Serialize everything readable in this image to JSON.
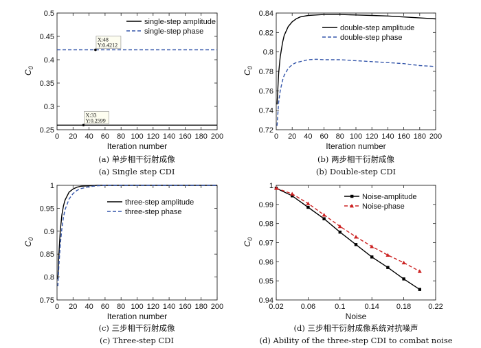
{
  "chart_data": [
    {
      "type": "line",
      "panel": "a",
      "xlabel": "Iteration number",
      "ylabel": "C0",
      "xlim": [
        0,
        200
      ],
      "ylim": [
        0.25,
        0.5
      ],
      "xticks": [
        "0",
        "20",
        "40",
        "60",
        "80",
        "100",
        "120",
        "140",
        "160",
        "180",
        "200"
      ],
      "yticks": [
        "0.25",
        "0.3",
        "0.35",
        "0.4",
        "0.45",
        "0.5"
      ],
      "legend_position": "top-right",
      "series": [
        {
          "name": "single-step amplitude",
          "color": "#000000",
          "style": "solid",
          "x": [
            0,
            200
          ],
          "y": [
            0.2599,
            0.2599
          ]
        },
        {
          "name": "single-step phase",
          "color": "#3355aa",
          "style": "dashed",
          "x": [
            0,
            200
          ],
          "y": [
            0.4212,
            0.4212
          ]
        }
      ],
      "annotations": [
        {
          "x": 48,
          "y": 0.4212,
          "text_x": "X:48",
          "text_y": "Y:0.4212"
        },
        {
          "x": 33,
          "y": 0.2599,
          "text_x": "X:33",
          "text_y": "Y:0.2599"
        }
      ],
      "caption_cn": "(a) 单步相干衍射成像",
      "caption_en": "(a) Single step CDI"
    },
    {
      "type": "line",
      "panel": "b",
      "xlabel": "Iteration number",
      "ylabel": "C0",
      "xlim": [
        0,
        200
      ],
      "ylim": [
        0.72,
        0.84
      ],
      "xticks": [
        "0",
        "20",
        "40",
        "60",
        "80",
        "100",
        "120",
        "140",
        "160",
        "180",
        "200"
      ],
      "yticks": [
        "0.72",
        "0.74",
        "0.76",
        "0.78",
        "0.8",
        "0.82",
        "0.84"
      ],
      "legend_position": "top-right",
      "series": [
        {
          "name": "double-step amplitude",
          "color": "#000000",
          "style": "solid",
          "x": [
            1,
            3,
            5,
            8,
            10,
            15,
            20,
            25,
            30,
            40,
            50,
            60,
            80,
            100,
            120,
            140,
            160,
            180,
            200
          ],
          "y": [
            0.746,
            0.778,
            0.795,
            0.81,
            0.817,
            0.826,
            0.831,
            0.834,
            0.836,
            0.8375,
            0.838,
            0.8385,
            0.8385,
            0.838,
            0.8375,
            0.837,
            0.836,
            0.835,
            0.834
          ]
        },
        {
          "name": "double-step phase",
          "color": "#3355aa",
          "style": "dashed",
          "x": [
            1,
            3,
            5,
            8,
            10,
            15,
            20,
            25,
            30,
            40,
            50,
            60,
            80,
            100,
            120,
            140,
            160,
            180,
            200
          ],
          "y": [
            0.724,
            0.748,
            0.76,
            0.771,
            0.776,
            0.783,
            0.787,
            0.789,
            0.79,
            0.792,
            0.7925,
            0.792,
            0.792,
            0.791,
            0.79,
            0.789,
            0.788,
            0.786,
            0.785
          ]
        }
      ],
      "caption_cn": "(b) 两步相干衍射成像",
      "caption_en": "(b) Double-step CDI"
    },
    {
      "type": "line",
      "panel": "c",
      "xlabel": "Iteration number",
      "ylabel": "C0",
      "xlim": [
        0,
        200
      ],
      "ylim": [
        0.75,
        1.0
      ],
      "xticks": [
        "0",
        "20",
        "40",
        "60",
        "80",
        "100",
        "120",
        "140",
        "160",
        "180",
        "200"
      ],
      "yticks": [
        "0.75",
        "0.8",
        "0.85",
        "0.9",
        "0.95",
        "1"
      ],
      "legend_position": "top-right",
      "series": [
        {
          "name": "three-step amplitude",
          "color": "#000000",
          "style": "solid",
          "x": [
            1,
            2,
            4,
            6,
            8,
            10,
            15,
            20,
            25,
            30,
            40,
            50,
            60,
            100,
            200
          ],
          "y": [
            0.795,
            0.84,
            0.9,
            0.935,
            0.955,
            0.968,
            0.985,
            0.992,
            0.996,
            0.998,
            0.999,
            1.0,
            1.0,
            1.0,
            1.0
          ]
        },
        {
          "name": "three-step phase",
          "color": "#3355aa",
          "style": "dashed",
          "x": [
            1,
            2,
            4,
            6,
            8,
            10,
            15,
            20,
            25,
            30,
            40,
            50,
            60,
            100,
            200
          ],
          "y": [
            0.78,
            0.815,
            0.87,
            0.905,
            0.93,
            0.947,
            0.97,
            0.982,
            0.989,
            0.993,
            0.997,
            0.999,
            1.0,
            1.0,
            1.0
          ]
        }
      ],
      "caption_cn": "(c) 三步相干衍射成像",
      "caption_en": "(c) Three-step CDI"
    },
    {
      "type": "line",
      "panel": "d",
      "xlabel": "Noise",
      "ylabel": "C0",
      "xlim": [
        0.02,
        0.22
      ],
      "ylim": [
        0.94,
        1.0
      ],
      "xticks": [
        "0.02",
        "0.06",
        "0.1",
        "0.14",
        "0.18",
        "0.22"
      ],
      "yticks": [
        "0.94",
        "0.95",
        "0.96",
        "0.97",
        "0.98",
        "0.99",
        "1"
      ],
      "legend_position": "top-right",
      "series": [
        {
          "name": "Noise-amplitude",
          "color": "#000000",
          "style": "solid",
          "marker": "square",
          "x": [
            0.02,
            0.04,
            0.06,
            0.08,
            0.1,
            0.12,
            0.14,
            0.16,
            0.18,
            0.2
          ],
          "y": [
            0.9985,
            0.9945,
            0.9885,
            0.9825,
            0.9755,
            0.969,
            0.9625,
            0.957,
            0.951,
            0.9455
          ]
        },
        {
          "name": "Noise-phase",
          "color": "#cc2222",
          "style": "dashed",
          "marker": "triangle",
          "x": [
            0.02,
            0.04,
            0.06,
            0.08,
            0.1,
            0.12,
            0.14,
            0.16,
            0.18,
            0.2
          ],
          "y": [
            0.9985,
            0.9955,
            0.9905,
            0.9845,
            0.9785,
            0.973,
            0.968,
            0.9635,
            0.9595,
            0.955
          ]
        }
      ],
      "caption_cn": "(d) 三步相干衍射成像系统对抗噪声",
      "caption_en": "(d) Ability of the three-step CDI to combat noise"
    }
  ]
}
